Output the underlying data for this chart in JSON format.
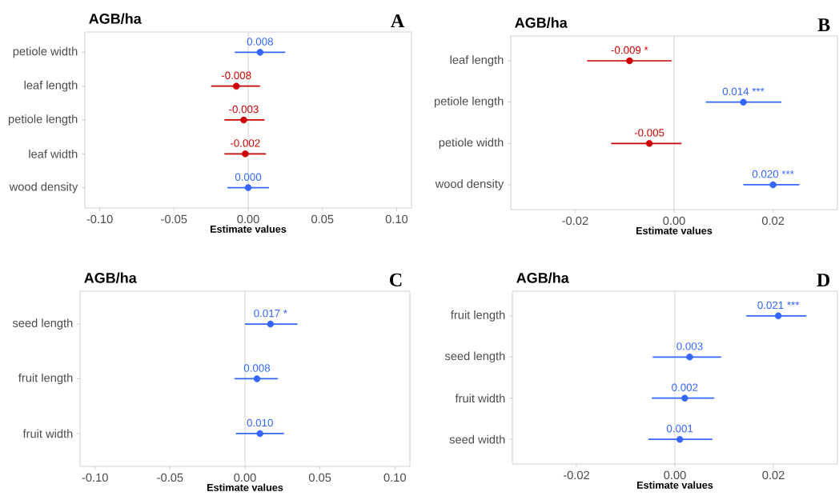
{
  "chart_data": [
    {
      "type": "scatter",
      "orientation": "horizontal",
      "title": "AGB/ha",
      "xlabel": "Estimate values",
      "annotations": [
        "A"
      ],
      "marker": "circle",
      "categories": [
        "petiole width",
        "leaf length",
        "petiole length",
        "leaf width",
        "wood density"
      ],
      "values": [
        0.008,
        -0.008,
        -0.003,
        -0.002,
        0.0
      ],
      "errors": [
        [
          -0.009,
          0.025
        ],
        [
          -0.025,
          0.008
        ],
        [
          -0.016,
          0.011
        ],
        [
          -0.016,
          0.012
        ],
        [
          -0.014,
          0.014
        ]
      ],
      "colors": [
        "#3366ff",
        "#cc0000",
        "#cc0000",
        "#cc0000",
        "#3366ff"
      ],
      "value_labels": [
        "0.008",
        "-0.008",
        "-0.003",
        "-0.002",
        "0.000"
      ],
      "ref_lines": [
        {
          "axis": "x",
          "value": 0,
          "color": "#c8c8c8"
        }
      ],
      "xlim": [
        -0.11,
        0.11
      ],
      "xticks": [
        {
          "value": -0.1,
          "label": "-0.10"
        },
        {
          "value": -0.05,
          "label": "-0.05"
        },
        {
          "value": 0,
          "label": "0.00"
        },
        {
          "value": 0.05,
          "label": "0.05"
        },
        {
          "value": 0.1,
          "label": "0.10"
        }
      ]
    },
    {
      "type": "scatter",
      "orientation": "horizontal",
      "title": "AGB/ha",
      "xlabel": "Estimate values",
      "annotations": [
        "B"
      ],
      "marker": "circle",
      "categories": [
        "leaf length",
        "petiole length",
        "petiole width",
        "wood density"
      ],
      "values": [
        -0.009,
        0.014,
        -0.005,
        0.02
      ],
      "errors": [
        [
          -0.0176,
          -0.0005
        ],
        [
          0.0064,
          0.0217
        ],
        [
          -0.0127,
          0.0015
        ],
        [
          0.014,
          0.0253
        ]
      ],
      "colors": [
        "#cc0000",
        "#3366ff",
        "#cc0000",
        "#3366ff"
      ],
      "value_labels": [
        "-0.009 *",
        "0.014 ***",
        "-0.005",
        "0.020 ***"
      ],
      "ref_lines": [
        {
          "axis": "x",
          "value": 0,
          "color": "#c8c8c8"
        }
      ],
      "xlim": [
        -0.033,
        0.033
      ],
      "xticks": [
        {
          "value": -0.02,
          "label": "-0.02"
        },
        {
          "value": 0,
          "label": "0.00"
        },
        {
          "value": 0.02,
          "label": "0.02"
        }
      ]
    },
    {
      "type": "scatter",
      "orientation": "horizontal",
      "title": "AGB/ha",
      "xlabel": "Estimate values",
      "annotations": [
        "C"
      ],
      "marker": "circle",
      "categories": [
        "seed length",
        "fruit length",
        "fruit width"
      ],
      "values": [
        0.017,
        0.008,
        0.01
      ],
      "errors": [
        [
          0.0,
          0.035
        ],
        [
          -0.007,
          0.022
        ],
        [
          -0.006,
          0.026
        ]
      ],
      "colors": [
        "#3366ff",
        "#3366ff",
        "#3366ff"
      ],
      "value_labels": [
        "0.017 *",
        "0.008",
        "0.010"
      ],
      "ref_lines": [
        {
          "axis": "x",
          "value": 0,
          "color": "#c8c8c8"
        }
      ],
      "xlim": [
        -0.11,
        0.11
      ],
      "xticks": [
        {
          "value": -0.1,
          "label": "-0.10"
        },
        {
          "value": -0.05,
          "label": "-0.05"
        },
        {
          "value": 0,
          "label": "0.00"
        },
        {
          "value": 0.05,
          "label": "0.05"
        },
        {
          "value": 0.1,
          "label": "0.10"
        }
      ]
    },
    {
      "type": "scatter",
      "orientation": "horizontal",
      "title": "AGB/ha",
      "xlabel": "Estimate values",
      "annotations": [
        "D"
      ],
      "marker": "circle",
      "categories": [
        "fruit length",
        "seed length",
        "fruit width",
        "seed width"
      ],
      "values": [
        0.021,
        0.003,
        0.002,
        0.001
      ],
      "errors": [
        [
          0.0145,
          0.0267
        ],
        [
          -0.0045,
          0.0094
        ],
        [
          -0.0047,
          0.008
        ],
        [
          -0.0054,
          0.0076
        ]
      ],
      "colors": [
        "#3366ff",
        "#3366ff",
        "#3366ff",
        "#3366ff"
      ],
      "value_labels": [
        "0.021 ***",
        "0.003",
        "0.002",
        "0.001"
      ],
      "ref_lines": [
        {
          "axis": "x",
          "value": 0,
          "color": "#c8c8c8"
        }
      ],
      "xlim": [
        -0.033,
        0.033
      ],
      "xticks": [
        {
          "value": -0.02,
          "label": "-0.02"
        },
        {
          "value": 0,
          "label": "0.00"
        },
        {
          "value": 0.02,
          "label": "0.02"
        }
      ]
    }
  ]
}
